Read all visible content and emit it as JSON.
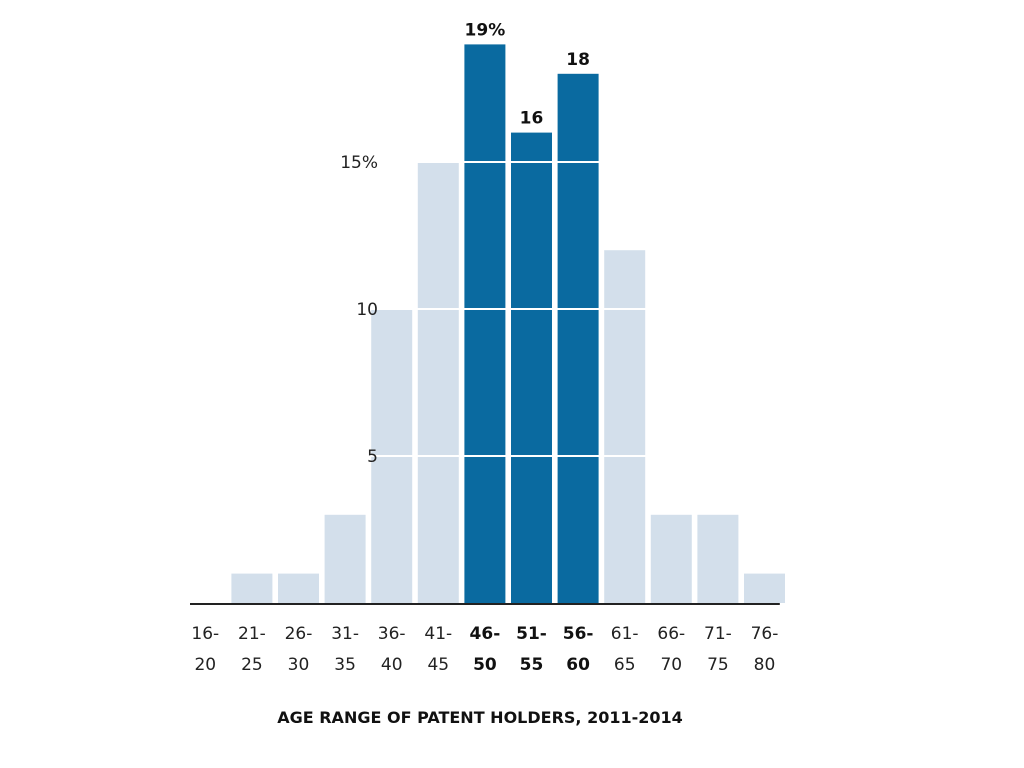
{
  "chart_data": {
    "type": "bar",
    "title": "",
    "xlabel": "AGE RANGE OF PATENT HOLDERS, 2011-2014",
    "ylabel": "",
    "ylim": [
      0,
      20
    ],
    "y_ticks": [
      {
        "value": 5,
        "label": "5"
      },
      {
        "value": 10,
        "label": "10"
      },
      {
        "value": 15,
        "label": "15%"
      }
    ],
    "grid": true,
    "categories": [
      {
        "top": "16-",
        "bottom": "20"
      },
      {
        "top": "21-",
        "bottom": "25"
      },
      {
        "top": "26-",
        "bottom": "30"
      },
      {
        "top": "31-",
        "bottom": "35"
      },
      {
        "top": "36-",
        "bottom": "40"
      },
      {
        "top": "41-",
        "bottom": "45"
      },
      {
        "top": "46-",
        "bottom": "50"
      },
      {
        "top": "51-",
        "bottom": "55"
      },
      {
        "top": "56-",
        "bottom": "60"
      },
      {
        "top": "61-",
        "bottom": "65"
      },
      {
        "top": "66-",
        "bottom": "70"
      },
      {
        "top": "71-",
        "bottom": "75"
      },
      {
        "top": "76-",
        "bottom": "80"
      }
    ],
    "values": [
      0,
      1,
      1,
      3,
      10,
      15,
      19,
      16,
      18,
      12,
      3,
      3,
      1
    ],
    "highlighted": [
      false,
      false,
      false,
      false,
      false,
      false,
      true,
      true,
      true,
      false,
      false,
      false,
      false
    ],
    "data_labels": [
      "",
      "",
      "",
      "",
      "",
      "",
      "19%",
      "16",
      "18",
      "",
      "",
      "",
      ""
    ],
    "colors": {
      "bar": "#d3dfeb",
      "highlight": "#0a6aa0",
      "grid": "#ffffff",
      "axis": "#222222"
    }
  }
}
